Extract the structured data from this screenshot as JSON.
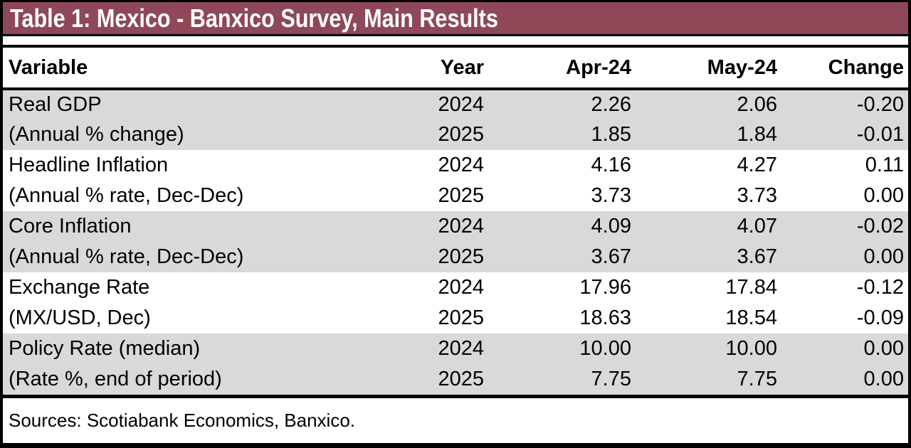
{
  "title": "Table 1: Mexico - Banxico Survey, Main Results",
  "colors": {
    "title_bar_bg": "#8E4858",
    "title_text": "#FFFFFF",
    "shaded_row_bg": "#D9D9D9",
    "border": "#000000"
  },
  "table": {
    "headers": [
      "Variable",
      "Year",
      "Apr-24",
      "May-24",
      "Change"
    ],
    "rows": [
      {
        "variable": "Real GDP",
        "year": "2024",
        "apr": "2.26",
        "may": "2.06",
        "change": "-0.20"
      },
      {
        "variable": "(Annual % change)",
        "year": "2025",
        "apr": "1.85",
        "may": "1.84",
        "change": "-0.01"
      },
      {
        "variable": "Headline Inflation",
        "year": "2024",
        "apr": "4.16",
        "may": "4.27",
        "change": "0.11"
      },
      {
        "variable": "(Annual % rate, Dec-Dec)",
        "year": "2025",
        "apr": "3.73",
        "may": "3.73",
        "change": "0.00"
      },
      {
        "variable": "Core Inflation",
        "year": "2024",
        "apr": "4.09",
        "may": "4.07",
        "change": "-0.02"
      },
      {
        "variable": "(Annual % rate, Dec-Dec)",
        "year": "2025",
        "apr": "3.67",
        "may": "3.67",
        "change": "0.00"
      },
      {
        "variable": "Exchange Rate",
        "year": "2024",
        "apr": "17.96",
        "may": "17.84",
        "change": "-0.12"
      },
      {
        "variable": "(MX/USD, Dec)",
        "year": "2025",
        "apr": "18.63",
        "may": "18.54",
        "change": "-0.09"
      },
      {
        "variable": "Policy Rate (median)",
        "year": "2024",
        "apr": "10.00",
        "may": "10.00",
        "change": "0.00"
      },
      {
        "variable": "(Rate %, end of period)",
        "year": "2025",
        "apr": "7.75",
        "may": "7.75",
        "change": "0.00"
      }
    ]
  },
  "footer": {
    "sources": "Sources: Scotiabank Economics, Banxico."
  },
  "chart_data": {
    "type": "table",
    "title": "Table 1: Mexico - Banxico Survey, Main Results",
    "columns": [
      "Variable",
      "Year",
      "Apr-24",
      "May-24",
      "Change"
    ],
    "rows": [
      [
        "Real GDP (Annual % change)",
        2024,
        2.26,
        2.06,
        -0.2
      ],
      [
        "Real GDP (Annual % change)",
        2025,
        1.85,
        1.84,
        -0.01
      ],
      [
        "Headline Inflation (Annual % rate, Dec-Dec)",
        2024,
        4.16,
        4.27,
        0.11
      ],
      [
        "Headline Inflation (Annual % rate, Dec-Dec)",
        2025,
        3.73,
        3.73,
        0.0
      ],
      [
        "Core Inflation (Annual % rate, Dec-Dec)",
        2024,
        4.09,
        4.07,
        -0.02
      ],
      [
        "Core Inflation (Annual % rate, Dec-Dec)",
        2025,
        3.67,
        3.67,
        0.0
      ],
      [
        "Exchange Rate (MX/USD, Dec)",
        2024,
        17.96,
        17.84,
        -0.12
      ],
      [
        "Exchange Rate (MX/USD, Dec)",
        2025,
        18.63,
        18.54,
        -0.09
      ],
      [
        "Policy Rate (median) (Rate %, end of period)",
        2024,
        10.0,
        10.0,
        0.0
      ],
      [
        "Policy Rate (median) (Rate %, end of period)",
        2025,
        7.75,
        7.75,
        0.0
      ]
    ],
    "source_note": "Sources: Scotiabank Economics, Banxico."
  }
}
